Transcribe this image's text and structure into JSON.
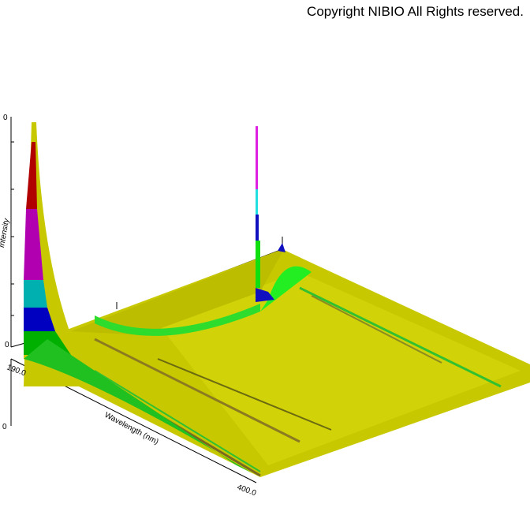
{
  "header": {
    "copyright": "Copyright NIBIO All Rights reserved."
  },
  "axes": {
    "intensity_label": "Intensity",
    "intensity_ticks": [
      "0",
      "0"
    ],
    "wavelength_label": "Wavelength (nm)",
    "wavelength_ticks": [
      "190.0",
      "400.0"
    ],
    "depth_ticks": [
      "0"
    ]
  }
}
